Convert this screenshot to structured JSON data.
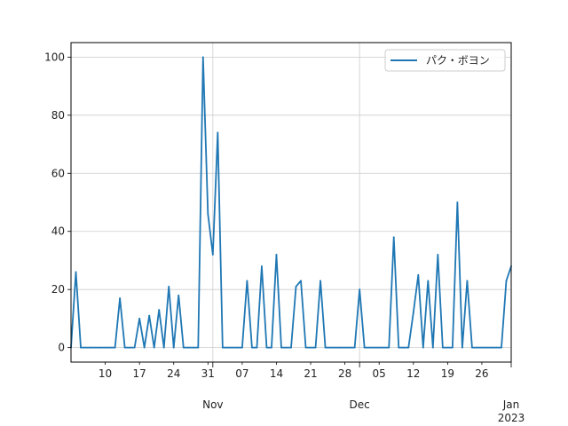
{
  "chart_data": {
    "type": "line",
    "title": "",
    "xlabel": "",
    "ylabel": "",
    "grid": true,
    "legend_position": "upper right",
    "line_color": "#1f77b4",
    "x_range": [
      "2022-10-03",
      "2023-01-01"
    ],
    "ylim": [
      -5,
      105
    ],
    "y_ticks": [
      0,
      20,
      40,
      60,
      80,
      100
    ],
    "x_ticks": [
      {
        "date": "2022-10-10",
        "label": "10",
        "major": false
      },
      {
        "date": "2022-10-17",
        "label": "17",
        "major": false
      },
      {
        "date": "2022-10-24",
        "label": "24",
        "major": false
      },
      {
        "date": "2022-10-31",
        "label": "31",
        "major": false
      },
      {
        "date": "2022-11-01",
        "label": "Nov",
        "major": true
      },
      {
        "date": "2022-11-07",
        "label": "07",
        "major": false
      },
      {
        "date": "2022-11-14",
        "label": "14",
        "major": false
      },
      {
        "date": "2022-11-21",
        "label": "21",
        "major": false
      },
      {
        "date": "2022-11-28",
        "label": "28",
        "major": false
      },
      {
        "date": "2022-12-01",
        "label": "Dec",
        "major": true
      },
      {
        "date": "2022-12-05",
        "label": "05",
        "major": false
      },
      {
        "date": "2022-12-12",
        "label": "12",
        "major": false
      },
      {
        "date": "2022-12-19",
        "label": "19",
        "major": false
      },
      {
        "date": "2022-12-26",
        "label": "26",
        "major": false
      },
      {
        "date": "2023-01-01",
        "label": "Jan\n2023",
        "major": true
      }
    ],
    "series": [
      {
        "name": "パク・ボヨン",
        "color": "#1f77b4",
        "points": [
          [
            "2022-10-03",
            0
          ],
          [
            "2022-10-04",
            26
          ],
          [
            "2022-10-05",
            0
          ],
          [
            "2022-10-06",
            0
          ],
          [
            "2022-10-07",
            0
          ],
          [
            "2022-10-08",
            0
          ],
          [
            "2022-10-09",
            0
          ],
          [
            "2022-10-10",
            0
          ],
          [
            "2022-10-11",
            0
          ],
          [
            "2022-10-12",
            0
          ],
          [
            "2022-10-13",
            17
          ],
          [
            "2022-10-14",
            0
          ],
          [
            "2022-10-15",
            0
          ],
          [
            "2022-10-16",
            0
          ],
          [
            "2022-10-17",
            10
          ],
          [
            "2022-10-18",
            0
          ],
          [
            "2022-10-19",
            11
          ],
          [
            "2022-10-20",
            0
          ],
          [
            "2022-10-21",
            13
          ],
          [
            "2022-10-22",
            0
          ],
          [
            "2022-10-23",
            21
          ],
          [
            "2022-10-24",
            0
          ],
          [
            "2022-10-25",
            18
          ],
          [
            "2022-10-26",
            0
          ],
          [
            "2022-10-27",
            0
          ],
          [
            "2022-10-28",
            0
          ],
          [
            "2022-10-29",
            0
          ],
          [
            "2022-10-30",
            100
          ],
          [
            "2022-10-31",
            46
          ],
          [
            "2022-11-01",
            32
          ],
          [
            "2022-11-02",
            74
          ],
          [
            "2022-11-03",
            0
          ],
          [
            "2022-11-04",
            0
          ],
          [
            "2022-11-05",
            0
          ],
          [
            "2022-11-06",
            0
          ],
          [
            "2022-11-07",
            0
          ],
          [
            "2022-11-08",
            23
          ],
          [
            "2022-11-09",
            0
          ],
          [
            "2022-11-10",
            0
          ],
          [
            "2022-11-11",
            28
          ],
          [
            "2022-11-12",
            0
          ],
          [
            "2022-11-13",
            0
          ],
          [
            "2022-11-14",
            32
          ],
          [
            "2022-11-15",
            0
          ],
          [
            "2022-11-16",
            0
          ],
          [
            "2022-11-17",
            0
          ],
          [
            "2022-11-18",
            21
          ],
          [
            "2022-11-19",
            23
          ],
          [
            "2022-11-20",
            0
          ],
          [
            "2022-11-21",
            0
          ],
          [
            "2022-11-22",
            0
          ],
          [
            "2022-11-23",
            23
          ],
          [
            "2022-11-24",
            0
          ],
          [
            "2022-11-25",
            0
          ],
          [
            "2022-11-26",
            0
          ],
          [
            "2022-11-27",
            0
          ],
          [
            "2022-11-28",
            0
          ],
          [
            "2022-11-29",
            0
          ],
          [
            "2022-11-30",
            0
          ],
          [
            "2022-12-01",
            20
          ],
          [
            "2022-12-02",
            0
          ],
          [
            "2022-12-03",
            0
          ],
          [
            "2022-12-04",
            0
          ],
          [
            "2022-12-05",
            0
          ],
          [
            "2022-12-06",
            0
          ],
          [
            "2022-12-07",
            0
          ],
          [
            "2022-12-08",
            38
          ],
          [
            "2022-12-09",
            0
          ],
          [
            "2022-12-10",
            0
          ],
          [
            "2022-12-11",
            0
          ],
          [
            "2022-12-12",
            12
          ],
          [
            "2022-12-13",
            25
          ],
          [
            "2022-12-14",
            0
          ],
          [
            "2022-12-15",
            23
          ],
          [
            "2022-12-16",
            0
          ],
          [
            "2022-12-17",
            32
          ],
          [
            "2022-12-18",
            0
          ],
          [
            "2022-12-19",
            0
          ],
          [
            "2022-12-20",
            0
          ],
          [
            "2022-12-21",
            50
          ],
          [
            "2022-12-22",
            0
          ],
          [
            "2022-12-23",
            23
          ],
          [
            "2022-12-24",
            0
          ],
          [
            "2022-12-25",
            0
          ],
          [
            "2022-12-26",
            0
          ],
          [
            "2022-12-27",
            0
          ],
          [
            "2022-12-28",
            0
          ],
          [
            "2022-12-29",
            0
          ],
          [
            "2022-12-30",
            0
          ],
          [
            "2022-12-31",
            23
          ],
          [
            "2023-01-01",
            28
          ]
        ]
      }
    ]
  }
}
